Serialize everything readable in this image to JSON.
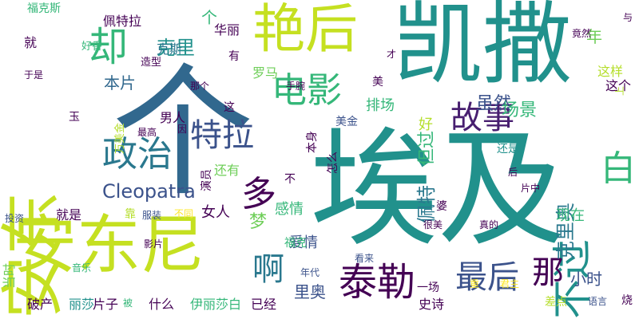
{
  "palette": {
    "background": "#ffffff",
    "purple": "#440154",
    "indigo": "#3b528b",
    "blue": "#31688e",
    "teal": "#21918c",
    "green": "#35b779",
    "lightgreen": "#6ece58",
    "lime": "#b5de2b",
    "yellow": "#fde725"
  },
  "words": [
    {
      "text": "埃及",
      "color": "#21918c",
      "rotate": 0
    },
    {
      "text": "个",
      "color": "#31688e",
      "rotate": 0
    },
    {
      "text": "凯撒",
      "color": "#21918c",
      "rotate": 0
    },
    {
      "text": "安东尼",
      "color": "#c5e021",
      "rotate": 0
    },
    {
      "text": "安东",
      "color": "#c5e021",
      "rotate": -90
    },
    {
      "text": "艳后",
      "color": "#c5e021",
      "rotate": 0
    },
    {
      "text": "泰勒",
      "color": "#440154",
      "rotate": 0
    },
    {
      "text": "电影",
      "color": "#35b779",
      "rotate": 0
    },
    {
      "text": "政治",
      "color": "#2a788e",
      "rotate": 0
    },
    {
      "text": "特拉",
      "color": "#3b528b",
      "rotate": 0
    },
    {
      "text": "故事",
      "color": "#481f70",
      "rotate": 0
    },
    {
      "text": "最后",
      "color": "#3b528b",
      "rotate": 0
    },
    {
      "text": "却",
      "color": "#35b779",
      "rotate": 0
    },
    {
      "text": "不过",
      "color": "#21918c",
      "rotate": -90
    },
    {
      "text": "白",
      "color": "#35b779",
      "rotate": 0
    },
    {
      "text": "那",
      "color": "#440154",
      "rotate": 0
    },
    {
      "text": "啊",
      "color": "#2a788e",
      "rotate": 0
    },
    {
      "text": "多",
      "color": "#440154",
      "rotate": 0
    },
    {
      "text": "Cleopatra",
      "color": "#3b528b",
      "rotate": 0
    },
    {
      "text": "克里",
      "color": "#21918c",
      "rotate": 0
    },
    {
      "text": "克里奥",
      "color": "#2a788e",
      "rotate": -90
    },
    {
      "text": "佩特",
      "color": "#2a788e",
      "rotate": -90
    },
    {
      "text": "虽然",
      "color": "#3b528b",
      "rotate": 0
    },
    {
      "text": "场景",
      "color": "#35b779",
      "rotate": 0
    },
    {
      "text": "但过",
      "color": "#35b779",
      "rotate": -90
    },
    {
      "text": "里奥",
      "color": "#3b528b",
      "rotate": 0
    },
    {
      "text": "年",
      "color": "#6ece58",
      "rotate": 0
    },
    {
      "text": "本片",
      "color": "#31688e",
      "rotate": 0
    },
    {
      "text": "小时",
      "color": "#3b528b",
      "rotate": 0
    },
    {
      "text": "梦",
      "color": "#6ece58",
      "rotate": 0
    },
    {
      "text": "女人",
      "color": "#440154",
      "rotate": 0
    },
    {
      "text": "爱情",
      "color": "#3b528b",
      "rotate": 0
    },
    {
      "text": "感情",
      "color": "#35b779",
      "rotate": 0
    },
    {
      "text": "排场",
      "color": "#35b779",
      "rotate": 0
    },
    {
      "text": "现在",
      "color": "#35b779",
      "rotate": 0
    },
    {
      "text": "个",
      "color": "#35b779",
      "rotate": 0
    },
    {
      "text": "佩特拉",
      "color": "#440154",
      "rotate": 0
    },
    {
      "text": "华丽",
      "color": "#440154",
      "rotate": 0
    },
    {
      "text": "克斯",
      "color": "#2a788e",
      "rotate": 0
    },
    {
      "text": "罗马",
      "color": "#6ece58",
      "rotate": 0
    },
    {
      "text": "这样",
      "color": "#b5de2b",
      "rotate": 0
    },
    {
      "text": "这个",
      "color": "#440154",
      "rotate": 0
    },
    {
      "text": "伊丽莎白",
      "color": "#35b779",
      "rotate": 0
    },
    {
      "text": "什么",
      "color": "#440154",
      "rotate": 0
    },
    {
      "text": "片子",
      "color": "#440154",
      "rotate": 0
    },
    {
      "text": "已经",
      "color": "#440154",
      "rotate": 0
    },
    {
      "text": "史诗",
      "color": "#440154",
      "rotate": 0
    },
    {
      "text": "破产",
      "color": "#440154",
      "rotate": 0
    },
    {
      "text": "丽莎",
      "color": "#21918c",
      "rotate": 0
    },
    {
      "text": "一场",
      "color": "#440154",
      "rotate": 0
    },
    {
      "text": "男人",
      "color": "#440154",
      "rotate": 0
    },
    {
      "text": "美金",
      "color": "#3b528b",
      "rotate": 0
    },
    {
      "text": "还是",
      "color": "#21918c",
      "rotate": 0
    },
    {
      "text": "就是",
      "color": "#440154",
      "rotate": 0
    },
    {
      "text": "还有",
      "color": "#6ece58",
      "rotate": 0
    },
    {
      "text": "美",
      "color": "#440154",
      "rotate": 0
    },
    {
      "text": "好",
      "color": "#b5de2b",
      "rotate": 0
    },
    {
      "text": "就",
      "color": "#440154",
      "rotate": 0
    },
    {
      "text": "福克斯",
      "color": "#35b779",
      "rotate": 0
    },
    {
      "text": "福克",
      "color": "#35b779",
      "rotate": 0
    },
    {
      "text": "好香",
      "color": "#35b779",
      "rotate": 0
    },
    {
      "text": "造型",
      "color": "#440154",
      "rotate": 0
    },
    {
      "text": "看来",
      "color": "#3b528b",
      "rotate": 0
    },
    {
      "text": "年代",
      "color": "#3b528b",
      "rotate": 0
    },
    {
      "text": "语言",
      "color": "#3b528b",
      "rotate": 0
    },
    {
      "text": "差点",
      "color": "#b5de2b",
      "rotate": 0
    },
    {
      "text": "被",
      "color": "#35b779",
      "rotate": 0
    },
    {
      "text": "靠",
      "color": "#b5de2b",
      "rotate": 0
    },
    {
      "text": "服装",
      "color": "#3b528b",
      "rotate": 0
    },
    {
      "text": "不同",
      "color": "#fde725",
      "rotate": 0
    },
    {
      "text": "影片",
      "color": "#440154",
      "rotate": 0
    },
    {
      "text": "音乐",
      "color": "#35b779",
      "rotate": 0
    },
    {
      "text": "投资",
      "color": "#3b528b",
      "rotate": 0
    },
    {
      "text": "当时",
      "color": "#6ece58",
      "rotate": -90
    },
    {
      "text": "最高",
      "color": "#440154",
      "rotate": 0
    },
    {
      "text": "因",
      "color": "#440154",
      "rotate": 0
    },
    {
      "text": "玉",
      "color": "#440154",
      "rotate": 0
    },
    {
      "text": "这",
      "color": "#440154",
      "rotate": 0
    },
    {
      "text": "那个",
      "color": "#440154",
      "rotate": 0
    },
    {
      "text": "手腕",
      "color": "#440154",
      "rotate": 0
    },
    {
      "text": "本身",
      "color": "#440154",
      "rotate": -90
    },
    {
      "text": "怎么",
      "color": "#440154",
      "rotate": -90
    },
    {
      "text": "演员",
      "color": "#440154",
      "rotate": -90
    },
    {
      "text": "有",
      "color": "#440154",
      "rotate": 0
    },
    {
      "text": "婆",
      "color": "#440154",
      "rotate": 0
    },
    {
      "text": "很美",
      "color": "#440154",
      "rotate": 0
    },
    {
      "text": "真的",
      "color": "#440154",
      "rotate": 0
    },
    {
      "text": "后",
      "color": "#440154",
      "rotate": 0
    },
    {
      "text": "片中",
      "color": "#440154",
      "rotate": 0
    },
    {
      "text": "于是",
      "color": "#440154",
      "rotate": 0
    },
    {
      "text": "才",
      "color": "#440154",
      "rotate": 0
    },
    {
      "text": "与",
      "color": "#440154",
      "rotate": 0
    },
    {
      "text": "竟然",
      "color": "#440154",
      "rotate": 0
    },
    {
      "text": "上",
      "color": "#b5de2b",
      "rotate": -90
    },
    {
      "text": "万美金",
      "color": "#b5de2b",
      "rotate": -90
    },
    {
      "text": "不",
      "color": "#440154",
      "rotate": 0
    },
    {
      "text": "君主",
      "color": "#fde725",
      "rotate": 0
    },
    {
      "text": "重",
      "color": "#fde725",
      "rotate": 0
    },
    {
      "text": "烧",
      "color": "#440154",
      "rotate": 0
    }
  ]
}
